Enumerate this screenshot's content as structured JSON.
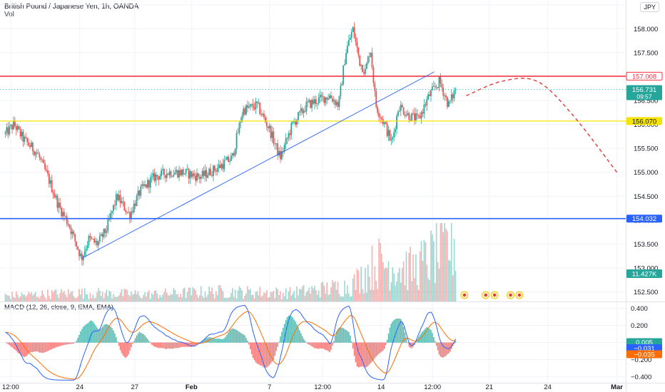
{
  "header": {
    "title": "British Pound / Japanese Yen, 1h, OANDA",
    "volume_label": "Vol",
    "macd_label": "MACD (12, 26, close, 9, EMA, EMA)",
    "currency": "JPY"
  },
  "colors": {
    "up": "#26a69a",
    "down": "#ef5350",
    "resistance": "#f23645",
    "support_yellow": "#f5e400",
    "support_blue": "#2962ff",
    "trendline": "#2962ff",
    "macd_line": "#2962ff",
    "signal_line": "#ff6d00",
    "projection": "#e53935"
  },
  "chart_data": [
    {
      "type": "candlestick",
      "title": "British Pound / Japanese Yen, 1h, OANDA",
      "ylim": [
        152.3,
        158.6
      ],
      "y_ticks": [
        152.5,
        153.0,
        153.5,
        154.0,
        154.5,
        155.0,
        155.5,
        156.0,
        156.5,
        157.0,
        157.5,
        158.0,
        158.5
      ],
      "y_tick_labels": [
        "152.500",
        "153.000",
        "153.500",
        "154.000",
        "154.500",
        "155.000",
        "155.500",
        "156.000",
        "156.500",
        "157.000",
        "157.500",
        "158.000",
        "158.500"
      ],
      "x_ticks": [
        "12:00",
        "24",
        "27",
        "Feb",
        "7",
        "12:00",
        "14",
        "12:00",
        "21",
        "24",
        "Mar"
      ],
      "x_tick_positions": [
        0.3,
        4.2,
        7.3,
        10.5,
        14.9,
        17.9,
        21.2,
        24.1,
        27.3,
        30.6,
        34.5
      ],
      "x_domain": [
        -0.3,
        35.0
      ],
      "last_bar_index": 25.4,
      "price_path": [
        {
          "i": 0.0,
          "p": 155.8
        },
        {
          "i": 0.5,
          "p": 156.0
        },
        {
          "i": 1.0,
          "p": 155.7
        },
        {
          "i": 1.8,
          "p": 155.4
        },
        {
          "i": 2.4,
          "p": 154.9
        },
        {
          "i": 3.0,
          "p": 154.3
        },
        {
          "i": 3.6,
          "p": 153.9
        },
        {
          "i": 4.0,
          "p": 153.5
        },
        {
          "i": 4.3,
          "p": 153.2
        },
        {
          "i": 4.7,
          "p": 153.6
        },
        {
          "i": 5.2,
          "p": 153.5
        },
        {
          "i": 5.7,
          "p": 153.8
        },
        {
          "i": 6.3,
          "p": 154.5
        },
        {
          "i": 7.0,
          "p": 154.1
        },
        {
          "i": 7.6,
          "p": 154.6
        },
        {
          "i": 8.4,
          "p": 154.9
        },
        {
          "i": 9.2,
          "p": 155.0
        },
        {
          "i": 10.0,
          "p": 155.0
        },
        {
          "i": 11.0,
          "p": 154.9
        },
        {
          "i": 12.0,
          "p": 155.1
        },
        {
          "i": 12.8,
          "p": 155.3
        },
        {
          "i": 13.4,
          "p": 156.3
        },
        {
          "i": 14.2,
          "p": 156.4
        },
        {
          "i": 14.9,
          "p": 155.9
        },
        {
          "i": 15.5,
          "p": 155.3
        },
        {
          "i": 16.2,
          "p": 156.0
        },
        {
          "i": 17.0,
          "p": 156.4
        },
        {
          "i": 17.6,
          "p": 156.5
        },
        {
          "i": 18.3,
          "p": 156.6
        },
        {
          "i": 18.8,
          "p": 156.4
        },
        {
          "i": 19.2,
          "p": 157.5
        },
        {
          "i": 19.6,
          "p": 158.0
        },
        {
          "i": 20.0,
          "p": 157.3
        },
        {
          "i": 20.3,
          "p": 157.1
        },
        {
          "i": 20.6,
          "p": 157.6
        },
        {
          "i": 20.9,
          "p": 156.4
        },
        {
          "i": 21.4,
          "p": 156.0
        },
        {
          "i": 21.8,
          "p": 155.6
        },
        {
          "i": 22.2,
          "p": 156.4
        },
        {
          "i": 22.7,
          "p": 156.2
        },
        {
          "i": 23.3,
          "p": 156.1
        },
        {
          "i": 23.9,
          "p": 156.6
        },
        {
          "i": 24.5,
          "p": 156.9
        },
        {
          "i": 25.0,
          "p": 156.4
        },
        {
          "i": 25.4,
          "p": 156.731
        }
      ],
      "volume_path": [
        {
          "i": 0.0,
          "v": 0.08
        },
        {
          "i": 4.0,
          "v": 0.12
        },
        {
          "i": 8.0,
          "v": 0.1
        },
        {
          "i": 12.0,
          "v": 0.14
        },
        {
          "i": 16.0,
          "v": 0.12
        },
        {
          "i": 19.5,
          "v": 0.22
        },
        {
          "i": 21.0,
          "v": 0.55
        },
        {
          "i": 23.0,
          "v": 0.45
        },
        {
          "i": 25.4,
          "v": 0.85
        }
      ],
      "horizontal_levels": [
        {
          "price": 157.008,
          "label": "157.008",
          "style": "resistance"
        },
        {
          "price": 156.07,
          "label": "156.070",
          "style": "support_yellow"
        },
        {
          "price": 154.032,
          "label": "154.032",
          "style": "support_blue"
        }
      ],
      "trendline": [
        {
          "i": 4.3,
          "p": 153.2
        },
        {
          "i": 24.2,
          "p": 157.1
        }
      ],
      "projection": [
        {
          "i": 26.0,
          "p": 156.6
        },
        {
          "i": 28.0,
          "p": 156.9
        },
        {
          "i": 30.0,
          "p": 156.9
        },
        {
          "i": 32.0,
          "p": 156.2
        },
        {
          "i": 34.5,
          "p": 155.0
        }
      ],
      "current_price": {
        "value": 156.731,
        "label": "156.731",
        "countdown": "09:57"
      },
      "volume_badge": {
        "label": "11.427K"
      }
    },
    {
      "type": "macd",
      "title": "MACD (12, 26, close, 9, EMA, EMA)",
      "ylim": [
        -0.47,
        0.47
      ],
      "y_ticks": [
        0.4,
        0.2,
        0.0,
        -0.2,
        -0.4
      ],
      "y_tick_labels": [
        "0.400",
        "0.200",
        "0.000",
        "−0.200",
        "−0.400"
      ],
      "badges": {
        "histogram": "0.005",
        "macd": "−0.031",
        "signal": "−0.035"
      }
    }
  ]
}
